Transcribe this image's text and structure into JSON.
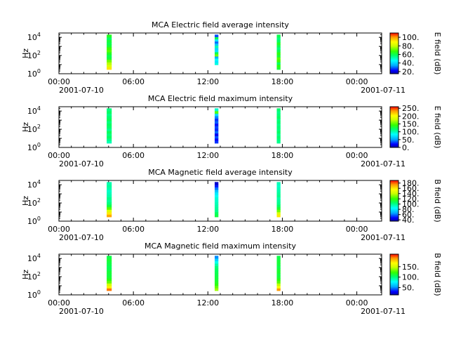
{
  "chart_data": [
    {
      "type": "heatmap",
      "title": "MCA  Electric field average intensity",
      "ylabel": "Hz",
      "y_scale": "log",
      "ylim": [
        1,
        30000
      ],
      "y_ticks": [
        {
          "value": 1,
          "base": "10",
          "exp": "0"
        },
        {
          "value": 100,
          "base": "10",
          "exp": "2"
        },
        {
          "value": 10000,
          "base": "10",
          "exp": "4"
        }
      ],
      "x_ticks": [
        {
          "hour": 0,
          "label": "00:00"
        },
        {
          "hour": 6,
          "label": "06:00"
        },
        {
          "hour": 12,
          "label": "12:00"
        },
        {
          "hour": 18,
          "label": "18:00"
        },
        {
          "hour": 24,
          "label": "00:00"
        }
      ],
      "x_date_labels": [
        "2001-07-10",
        "2001-07-11"
      ],
      "xlim_hours": [
        0,
        26
      ],
      "colorbar": {
        "label": "E field (dB)",
        "range": [
          15,
          110
        ],
        "ticks": [
          20,
          40,
          60,
          80,
          100
        ],
        "tick_labels": [
          "20.",
          "40.",
          "60.",
          "80.",
          "100."
        ]
      },
      "segments": [
        {
          "start_hour": 3.85,
          "end_hour": 4.25,
          "freq_range": [
            3,
            20000
          ],
          "value_profile_low_to_high_freq": [
            92,
            82,
            78,
            72,
            62,
            60,
            64,
            70,
            68,
            62,
            60,
            62,
            58,
            64
          ]
        },
        {
          "start_hour": 12.55,
          "end_hour": 12.85,
          "freq_range": [
            10,
            20000
          ],
          "value_profile_low_to_high_freq": [
            48,
            42,
            46,
            35,
            72,
            60,
            42,
            40,
            52,
            38,
            30,
            42,
            60,
            28
          ]
        },
        {
          "start_hour": 17.55,
          "end_hour": 17.85,
          "freq_range": [
            3,
            20000
          ],
          "value_profile_low_to_high_freq": [
            62,
            66,
            58,
            68,
            70,
            62,
            66,
            60,
            56,
            60,
            64,
            58,
            56,
            60
          ]
        }
      ]
    },
    {
      "type": "heatmap",
      "title": "MCA  Electric field maximum intensity",
      "ylabel": "Hz",
      "y_scale": "log",
      "ylim": [
        1,
        30000
      ],
      "y_ticks": [
        {
          "value": 1,
          "base": "10",
          "exp": "0"
        },
        {
          "value": 100,
          "base": "10",
          "exp": "2"
        },
        {
          "value": 10000,
          "base": "10",
          "exp": "4"
        }
      ],
      "x_ticks": [
        {
          "hour": 0,
          "label": "00:00"
        },
        {
          "hour": 6,
          "label": "06:00"
        },
        {
          "hour": 12,
          "label": "12:00"
        },
        {
          "hour": 18,
          "label": "18:00"
        },
        {
          "hour": 24,
          "label": "00:00"
        }
      ],
      "x_date_labels": [
        "2001-07-10",
        "2001-07-11"
      ],
      "xlim_hours": [
        0,
        26
      ],
      "colorbar": {
        "label": "E field (dB)",
        "range": [
          0,
          260
        ],
        "ticks": [
          0,
          50,
          100,
          150,
          200,
          250
        ],
        "tick_labels": [
          "0.",
          "50.",
          "100.",
          "150.",
          "200.",
          "250."
        ]
      },
      "segments": [
        {
          "start_hour": 3.85,
          "end_hour": 4.25,
          "freq_range": [
            3,
            20000
          ],
          "value_profile_low_to_high_freq": [
            100,
            110,
            118,
            112,
            120,
            108,
            115,
            118,
            112,
            120,
            116,
            110,
            118,
            112
          ]
        },
        {
          "start_hour": 12.55,
          "end_hour": 12.85,
          "freq_range": [
            3,
            20000
          ],
          "value_profile_low_to_high_freq": [
            30,
            22,
            36,
            18,
            40,
            28,
            34,
            24,
            38,
            30,
            45,
            70,
            150,
            95
          ]
        },
        {
          "start_hour": 17.55,
          "end_hour": 17.85,
          "freq_range": [
            3,
            20000
          ],
          "value_profile_low_to_high_freq": [
            108,
            112,
            116,
            110,
            118,
            112,
            114,
            110,
            116,
            112,
            118,
            114,
            110,
            116
          ]
        }
      ]
    },
    {
      "type": "heatmap",
      "title": "MCA  Magnetic field average intensity",
      "ylabel": "Hz",
      "y_scale": "log",
      "ylim": [
        1,
        30000
      ],
      "y_ticks": [
        {
          "value": 1,
          "base": "10",
          "exp": "0"
        },
        {
          "value": 100,
          "base": "10",
          "exp": "2"
        },
        {
          "value": 10000,
          "base": "10",
          "exp": "4"
        }
      ],
      "x_ticks": [
        {
          "hour": 0,
          "label": "00:00"
        },
        {
          "hour": 6,
          "label": "06:00"
        },
        {
          "hour": 12,
          "label": "12:00"
        },
        {
          "hour": 18,
          "label": "18:00"
        },
        {
          "hour": 24,
          "label": "00:00"
        }
      ],
      "x_date_labels": [
        "2001-07-10",
        "2001-07-11"
      ],
      "xlim_hours": [
        0,
        26
      ],
      "colorbar": {
        "label": "B field (dB)",
        "range": [
          35,
          190
        ],
        "ticks": [
          40,
          60,
          80,
          100,
          120,
          140,
          160,
          180
        ],
        "tick_labels": [
          "40.",
          "60.",
          "80.",
          "100.",
          "120.",
          "140.",
          "160.",
          "180."
        ]
      },
      "segments": [
        {
          "start_hour": 3.85,
          "end_hour": 4.25,
          "freq_range": [
            3,
            20000
          ],
          "value_profile_low_to_high_freq": [
            172,
            160,
            145,
            125,
            110,
            102,
            98,
            100,
            96,
            94,
            92,
            96,
            98,
            95
          ]
        },
        {
          "start_hour": 12.55,
          "end_hour": 12.85,
          "freq_range": [
            3,
            20000
          ],
          "value_profile_low_to_high_freq": [
            110,
            106,
            100,
            98,
            96,
            94,
            92,
            90,
            86,
            80,
            72,
            60,
            50,
            40
          ]
        },
        {
          "start_hour": 17.55,
          "end_hour": 17.85,
          "freq_range": [
            3,
            20000
          ],
          "value_profile_low_to_high_freq": [
            160,
            145,
            128,
            112,
            105,
            100,
            98,
            96,
            100,
            98,
            96,
            94,
            92,
            94
          ]
        }
      ]
    },
    {
      "type": "heatmap",
      "title": "MCA  Magnetic field maximum intensity",
      "ylabel": "Hz",
      "y_scale": "log",
      "ylim": [
        1,
        30000
      ],
      "y_ticks": [
        {
          "value": 1,
          "base": "10",
          "exp": "0"
        },
        {
          "value": 100,
          "base": "10",
          "exp": "2"
        },
        {
          "value": 10000,
          "base": "10",
          "exp": "4"
        }
      ],
      "x_ticks": [
        {
          "hour": 0,
          "label": "00:00"
        },
        {
          "hour": 6,
          "label": "06:00"
        },
        {
          "hour": 12,
          "label": "12:00"
        },
        {
          "hour": 18,
          "label": "18:00"
        },
        {
          "hour": 24,
          "label": "00:00"
        }
      ],
      "x_date_labels": [
        "2001-07-10",
        "2001-07-11"
      ],
      "xlim_hours": [
        0,
        26
      ],
      "colorbar": {
        "label": "B field (dB)",
        "range": [
          15,
          210
        ],
        "ticks": [
          50,
          100,
          150
        ],
        "tick_labels": [
          "50.",
          "100.",
          "150."
        ]
      },
      "segments": [
        {
          "start_hour": 3.85,
          "end_hour": 4.25,
          "freq_range": [
            3,
            20000
          ],
          "value_profile_low_to_high_freq": [
            195,
            170,
            150,
            130,
            118,
            112,
            110,
            112,
            108,
            106,
            108,
            110,
            112,
            108
          ]
        },
        {
          "start_hour": 12.55,
          "end_hour": 12.85,
          "freq_range": [
            3,
            20000
          ],
          "value_profile_low_to_high_freq": [
            140,
            130,
            120,
            115,
            112,
            110,
            108,
            106,
            104,
            100,
            92,
            80,
            65,
            50
          ]
        },
        {
          "start_hour": 17.55,
          "end_hour": 17.85,
          "freq_range": [
            3,
            20000
          ],
          "value_profile_low_to_high_freq": [
            190,
            165,
            145,
            128,
            118,
            112,
            110,
            114,
            112,
            108,
            110,
            112,
            110,
            108
          ]
        }
      ]
    }
  ]
}
